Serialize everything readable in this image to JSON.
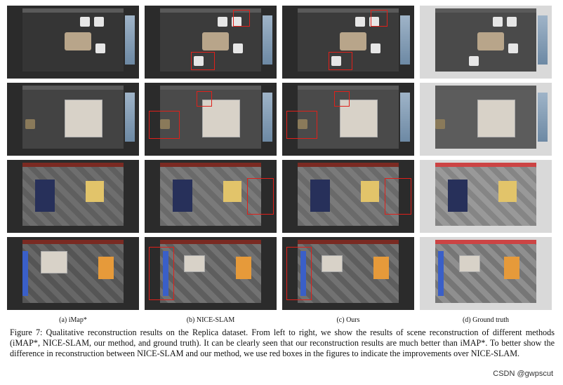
{
  "panel_labels": [
    "(a) iMap*",
    "(b) NICE-SLAM",
    "(c) Ours",
    "(d) Ground truth"
  ],
  "caption": "Figure 7: Qualitative reconstruction results on the Replica dataset. From left to right, we show the results of scene reconstruction of different methods (iMAP*, NICE-SLAM, our method, and ground truth). It can be clearly seen that our reconstruction results are much better than iMAP*. To better show the difference in reconstruction between NICE-SLAM and our method, we use red boxes in the figures to indicate the improvements over NICE-SLAM.",
  "watermark": "CSDN @gwpscut",
  "colors": {
    "highlight_box": "#e0201a"
  }
}
